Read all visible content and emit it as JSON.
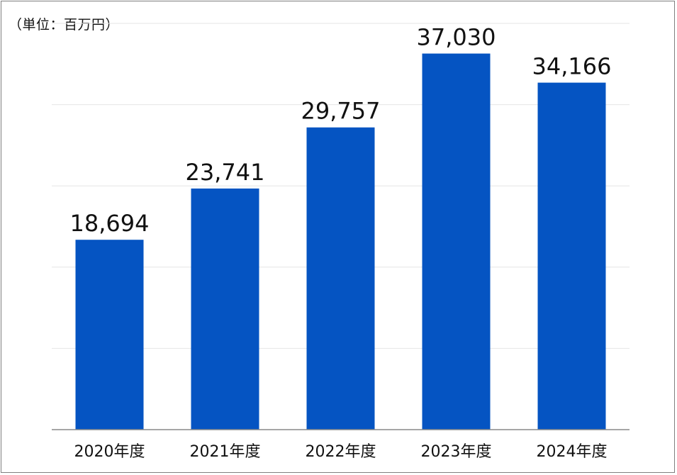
{
  "chart_data": {
    "type": "bar",
    "title": "",
    "unit_label": "（単位：百万円）",
    "xlabel": "",
    "ylabel": "",
    "categories": [
      "2020年度",
      "2021年度",
      "2022年度",
      "2023年度",
      "2024年度"
    ],
    "values": [
      18694,
      23741,
      29757,
      37030,
      34166
    ],
    "value_labels": [
      "18,694",
      "23,741",
      "29,757",
      "37,030",
      "34,166"
    ],
    "ylim": [
      0,
      40000
    ],
    "gridlines": [
      8000,
      16000,
      24000,
      32000,
      40000
    ],
    "grid": true,
    "legend": "none",
    "colors": {
      "bar": "#0554c2",
      "grid": "#e6e6e6",
      "axis": "#888888"
    }
  }
}
